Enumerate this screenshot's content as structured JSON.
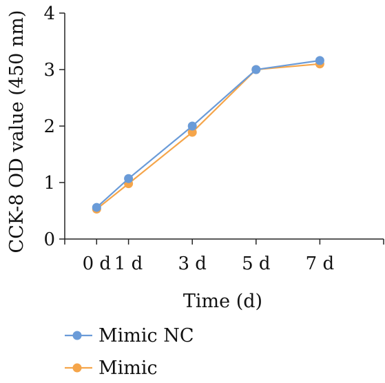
{
  "chart_data": {
    "type": "line",
    "xlabel": "Time (d)",
    "ylabel": "CCK-8 OD value (450 nm)",
    "x": [
      0,
      1,
      3,
      5,
      7
    ],
    "x_tick_labels": [
      "0 d",
      "1 d",
      "3 d",
      "5 d",
      "7 d"
    ],
    "xlim": [
      -1,
      9
    ],
    "ylim": [
      0,
      4
    ],
    "y_ticks": [
      0,
      1,
      2,
      3,
      4
    ],
    "grid": false,
    "legend_position": "bottom-left",
    "series": [
      {
        "name": "Mimic NC",
        "color": "#6a9bd8",
        "values": [
          0.56,
          1.07,
          2.0,
          3.0,
          3.16
        ]
      },
      {
        "name": "Mimic",
        "color": "#f5a54a",
        "values": [
          0.53,
          0.98,
          1.89,
          3.0,
          3.1
        ]
      }
    ]
  }
}
